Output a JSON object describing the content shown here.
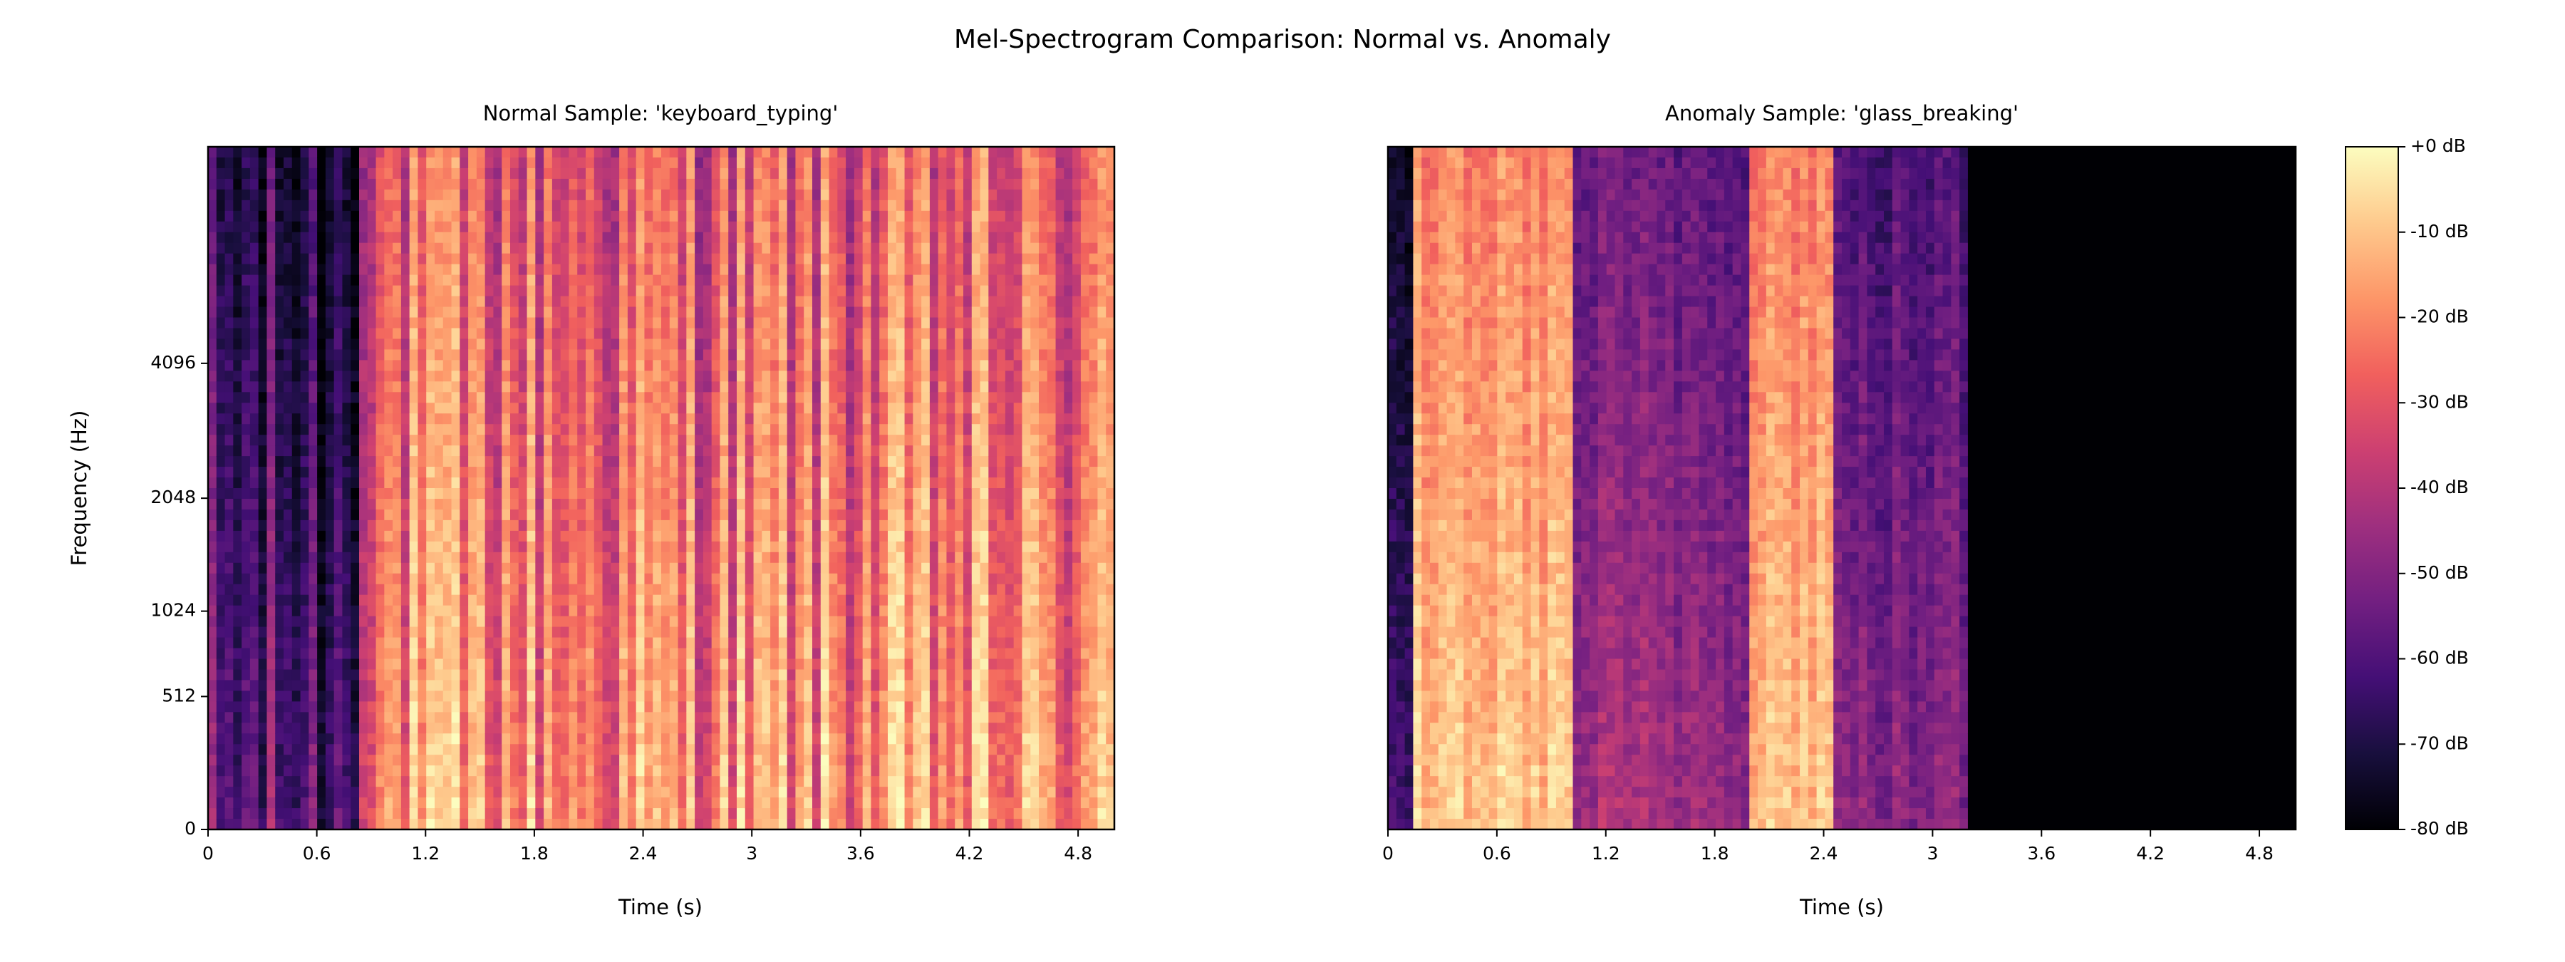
{
  "figure": {
    "suptitle": "Mel-Spectrogram Comparison: Normal vs. Anomaly"
  },
  "colorbar": {
    "range_db": [
      -80,
      0
    ],
    "tick_values": [
      0,
      -10,
      -20,
      -30,
      -40,
      -50,
      -60,
      -70,
      -80
    ],
    "tick_labels": [
      "+0 dB",
      "-10 dB",
      "-20 dB",
      "-30 dB",
      "-40 dB",
      "-50 dB",
      "-60 dB",
      "-70 dB",
      "-80 dB"
    ],
    "colormap": "magma",
    "colormap_stops": [
      "#000004",
      "#180f3d",
      "#440f76",
      "#721f81",
      "#9e2f7f",
      "#cd4071",
      "#f1605d",
      "#fd9668",
      "#feca8d",
      "#fcfdbf"
    ]
  },
  "chart_data": [
    {
      "type": "heatmap",
      "title": "Normal Sample: 'keyboard_typing'",
      "xlabel": "Time (s)",
      "ylabel": "Frequency (Hz)",
      "xlim": [
        0,
        5
      ],
      "x_ticks": [
        0,
        0.6,
        1.2,
        1.8,
        2.4,
        3,
        3.6,
        4.2,
        4.8
      ],
      "x_tick_labels": [
        "0",
        "0.6",
        "1.2",
        "1.8",
        "2.4",
        "3",
        "3.6",
        "4.2",
        "4.8"
      ],
      "y_scale": "mel",
      "y_ticks": [
        0,
        512,
        1024,
        2048,
        4096
      ],
      "y_tick_labels": [
        "0",
        "512",
        "1024",
        "2048",
        "4096"
      ],
      "value_range_db": [
        -80,
        0
      ],
      "time_segments": [
        {
          "start_s": 0.0,
          "end_s": 0.85,
          "description": "mostly dark with a few vertical stripes",
          "level_db_approx": -65
        },
        {
          "start_s": 0.85,
          "end_s": 5.0,
          "description": "dense vertical key-press stripes",
          "level_db_approx": -25
        }
      ]
    },
    {
      "type": "heatmap",
      "title": "Anomaly Sample: 'glass_breaking'",
      "xlabel": "Time (s)",
      "xlim": [
        0,
        5
      ],
      "x_ticks": [
        0,
        0.6,
        1.2,
        1.8,
        2.4,
        3,
        3.6,
        4.2,
        4.8
      ],
      "x_tick_labels": [
        "0",
        "0.6",
        "1.2",
        "1.8",
        "2.4",
        "3",
        "3.6",
        "4.2",
        "4.8"
      ],
      "y_scale": "mel",
      "value_range_db": [
        -80,
        0
      ],
      "time_segments": [
        {
          "start_s": 0.0,
          "end_s": 0.15,
          "description": "dark onset",
          "level_db_approx": -70
        },
        {
          "start_s": 0.15,
          "end_s": 1.0,
          "description": "bright broadband burst",
          "level_db_approx": -15
        },
        {
          "start_s": 1.0,
          "end_s": 2.0,
          "description": "decaying, dark upper band",
          "level_db_approx": -50
        },
        {
          "start_s": 2.0,
          "end_s": 2.45,
          "description": "second bright burst",
          "level_db_approx": -15
        },
        {
          "start_s": 2.45,
          "end_s": 3.2,
          "description": "decay",
          "level_db_approx": -55
        },
        {
          "start_s": 3.2,
          "end_s": 5.0,
          "description": "silence",
          "level_db_approx": -80
        }
      ]
    }
  ]
}
